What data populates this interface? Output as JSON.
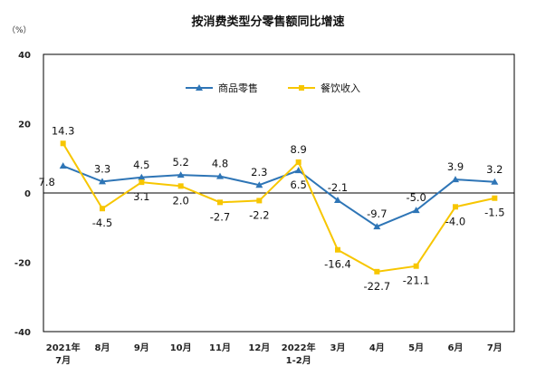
{
  "chart_data": {
    "type": "line",
    "title": "按消费类型分零售额同比增速",
    "unit_label": "（%）",
    "xlabel": "",
    "ylabel": "",
    "ylim": [
      -40,
      40
    ],
    "yticks": [
      "40",
      "20",
      "0",
      "-20",
      "-40"
    ],
    "ytick_values": [
      40,
      20,
      0,
      -20,
      -40
    ],
    "grid": false,
    "legend_position": "top-center",
    "categories": [
      [
        "2021年",
        "7月"
      ],
      [
        "8月"
      ],
      [
        "9月"
      ],
      [
        "10月"
      ],
      [
        "11月"
      ],
      [
        "12月"
      ],
      [
        "2022年",
        "1-2月"
      ],
      [
        "3月"
      ],
      [
        "4月"
      ],
      [
        "5月"
      ],
      [
        "6月"
      ],
      [
        "7月"
      ]
    ],
    "series": [
      {
        "name": "商品零售",
        "color": "#2E75B6",
        "marker": "triangle",
        "values": [
          7.8,
          3.3,
          4.5,
          5.2,
          4.8,
          2.3,
          6.5,
          -2.1,
          -9.7,
          -5.0,
          3.9,
          3.2
        ],
        "labels": [
          "7.8",
          "3.3",
          "4.5",
          "5.2",
          "4.8",
          "2.3",
          "6.5",
          "-2.1",
          "-9.7",
          "-5.0",
          "3.9",
          "3.2"
        ]
      },
      {
        "name": "餐饮收入",
        "color": "#F7C600",
        "marker": "square",
        "values": [
          14.3,
          -4.5,
          3.1,
          2.0,
          -2.7,
          -2.2,
          8.9,
          -16.4,
          -22.7,
          -21.1,
          -4.0,
          -1.5
        ],
        "labels": [
          "14.3",
          "-4.5",
          "3.1",
          "2.0",
          "-2.7",
          "-2.2",
          "8.9",
          "-16.4",
          "-22.7",
          "-21.1",
          "-4.0",
          "-1.5"
        ]
      }
    ]
  }
}
